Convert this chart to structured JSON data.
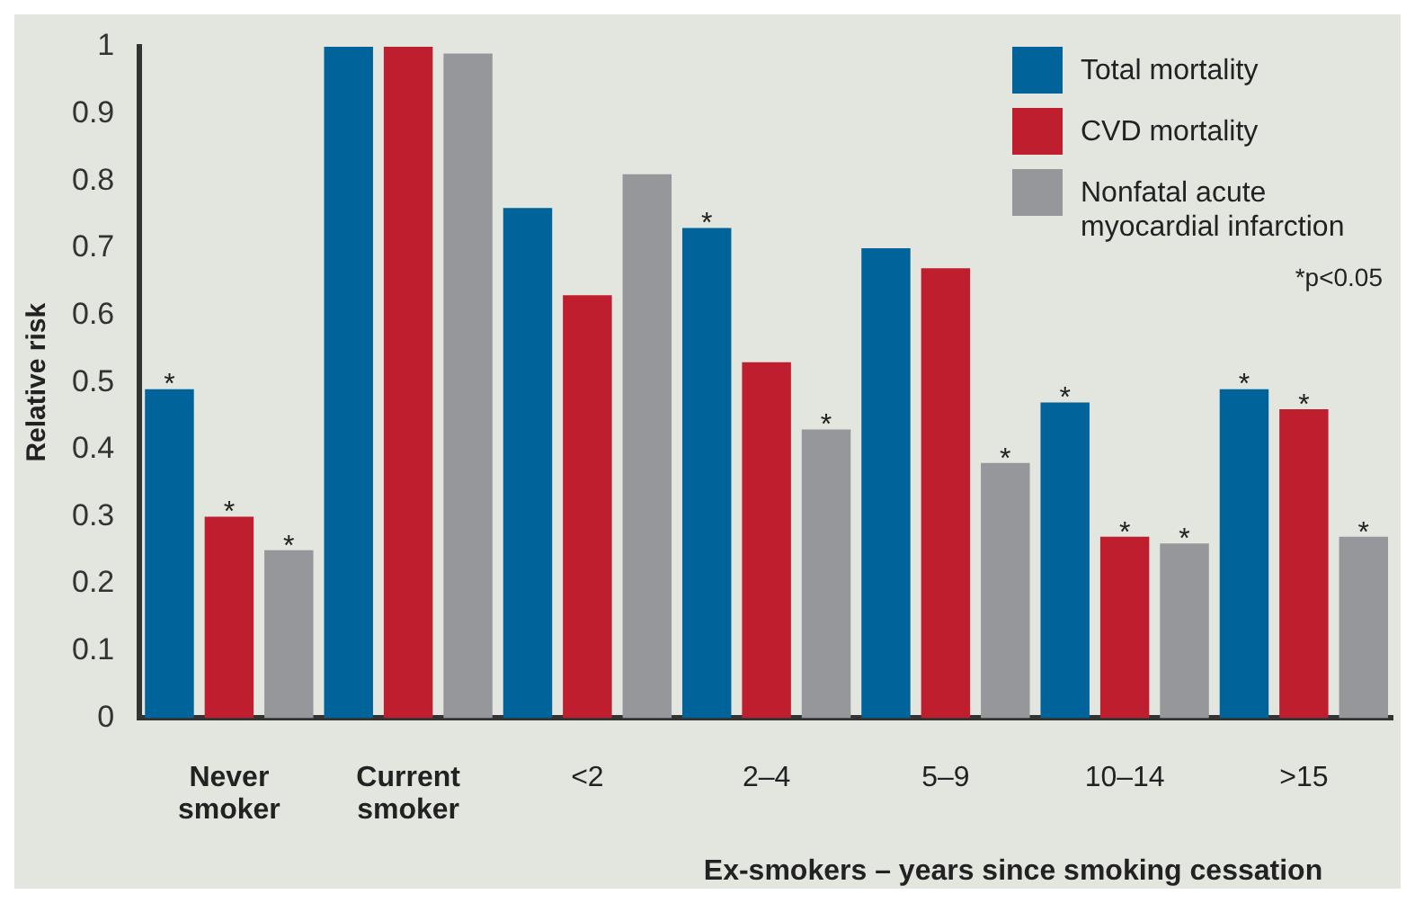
{
  "chart_data": {
    "type": "bar",
    "ylabel": "Relative risk",
    "categories": [
      "Never smoker",
      "Current smoker",
      "<2",
      "2–4",
      "5–9",
      "10–14",
      ">15"
    ],
    "series": [
      {
        "name": "Total mortality",
        "color": "#00639a",
        "values": [
          0.49,
          1,
          0.76,
          0.73,
          0.7,
          0.47,
          0.49
        ],
        "value_labels": [
          "*",
          null,
          null,
          "*",
          null,
          "*",
          "*"
        ]
      },
      {
        "name": "CVD mortality",
        "color": "#be1e2d",
        "values": [
          0.3,
          1,
          0.63,
          0.53,
          0.67,
          0.27,
          0.46
        ],
        "value_labels": [
          "*",
          null,
          null,
          null,
          null,
          "*",
          "*"
        ]
      },
      {
        "name": "Nonfatal acute myocardial infarction",
        "color": "#96979b",
        "values": [
          0.25,
          0.99,
          0.81,
          0.43,
          0.38,
          0.26,
          0.27
        ],
        "value_labels": [
          "*",
          null,
          null,
          "*",
          "*",
          "*",
          "*"
        ]
      }
    ],
    "ylim": [
      0,
      1
    ],
    "yticks": [
      0,
      0.1,
      0.2,
      0.3,
      0.4,
      0.5,
      0.6,
      0.7,
      0.8,
      0.9,
      1
    ],
    "grid": false,
    "legend": "top right",
    "annotations": [
      "*p<0.05",
      "Ex-smokers – years since smoking cessation"
    ]
  }
}
